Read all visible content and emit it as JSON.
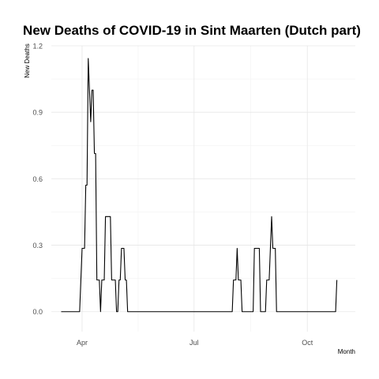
{
  "chart_data": {
    "type": "line",
    "title": "New Deaths of COVID-19 in Sint Maarten (Dutch part)",
    "xlabel": "Month",
    "ylabel": "New Deaths",
    "xlim": [
      "2020-03-07",
      "2020-11-09"
    ],
    "ylim": [
      -0.09,
      1.2
    ],
    "x_ticks": [
      {
        "date": "2020-04-01",
        "label": "Apr"
      },
      {
        "date": "2020-07-01",
        "label": "Jul"
      },
      {
        "date": "2020-10-01",
        "label": "Oct"
      }
    ],
    "y_ticks": [
      0.0,
      0.3,
      0.6,
      0.9,
      1.2
    ],
    "y_tick_labels": [
      "0.0",
      "0.3",
      "0.6",
      "0.9",
      "1.2"
    ],
    "grid": true,
    "series": [
      {
        "color": "#000000",
        "points": [
          [
            "2020-03-15",
            0
          ],
          [
            "2020-03-30",
            0
          ],
          [
            "2020-04-01",
            0.286
          ],
          [
            "2020-04-03",
            0.286
          ],
          [
            "2020-04-04",
            0.571
          ],
          [
            "2020-04-05",
            0.571
          ],
          [
            "2020-04-06",
            1.143
          ],
          [
            "2020-04-07",
            1.0
          ],
          [
            "2020-04-08",
            0.857
          ],
          [
            "2020-04-09",
            1.0
          ],
          [
            "2020-04-10",
            1.0
          ],
          [
            "2020-04-11",
            0.714
          ],
          [
            "2020-04-12",
            0.714
          ],
          [
            "2020-04-13",
            0.143
          ],
          [
            "2020-04-15",
            0.143
          ],
          [
            "2020-04-16",
            0
          ],
          [
            "2020-04-17",
            0.143
          ],
          [
            "2020-04-19",
            0.143
          ],
          [
            "2020-04-20",
            0.429
          ],
          [
            "2020-04-23",
            0.429
          ],
          [
            "2020-04-24",
            0.429
          ],
          [
            "2020-04-25",
            0.143
          ],
          [
            "2020-04-28",
            0.143
          ],
          [
            "2020-04-29",
            0
          ],
          [
            "2020-04-30",
            0
          ],
          [
            "2020-05-01",
            0.143
          ],
          [
            "2020-05-02",
            0.143
          ],
          [
            "2020-05-03",
            0.286
          ],
          [
            "2020-05-05",
            0.286
          ],
          [
            "2020-05-06",
            0.143
          ],
          [
            "2020-05-07",
            0.143
          ],
          [
            "2020-05-08",
            0
          ],
          [
            "2020-08-01",
            0
          ],
          [
            "2020-08-02",
            0.143
          ],
          [
            "2020-08-04",
            0.143
          ],
          [
            "2020-08-05",
            0.286
          ],
          [
            "2020-08-06",
            0.143
          ],
          [
            "2020-08-08",
            0.143
          ],
          [
            "2020-08-09",
            0
          ],
          [
            "2020-08-18",
            0
          ],
          [
            "2020-08-19",
            0.286
          ],
          [
            "2020-08-23",
            0.286
          ],
          [
            "2020-08-24",
            0
          ],
          [
            "2020-08-28",
            0
          ],
          [
            "2020-08-29",
            0.143
          ],
          [
            "2020-08-31",
            0.143
          ],
          [
            "2020-09-01",
            0.286
          ],
          [
            "2020-09-02",
            0.429
          ],
          [
            "2020-09-03",
            0.286
          ],
          [
            "2020-09-05",
            0.286
          ],
          [
            "2020-09-06",
            0
          ],
          [
            "2020-10-24",
            0
          ],
          [
            "2020-10-25",
            0.143
          ]
        ]
      }
    ]
  }
}
